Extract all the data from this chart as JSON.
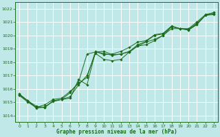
{
  "title": "Graphe pression niveau de la mer (hPa)",
  "bg_color": "#c0e8e8",
  "plot_bg_color": "#c0e8e8",
  "grid_color": "#ffffff",
  "line_color": "#1a6b1a",
  "marker_color": "#1a6b1a",
  "xlim": [
    -0.5,
    23.5
  ],
  "ylim": [
    1013.5,
    1022.5
  ],
  "xticks": [
    0,
    1,
    2,
    3,
    4,
    5,
    6,
    7,
    8,
    9,
    10,
    11,
    12,
    13,
    14,
    15,
    16,
    17,
    18,
    19,
    20,
    21,
    22,
    23
  ],
  "yticks": [
    1014,
    1015,
    1016,
    1017,
    1018,
    1019,
    1020,
    1021,
    1022
  ],
  "series": [
    [
      1015.5,
      1015.1,
      1014.7,
      1014.6,
      1015.1,
      1015.2,
      1015.3,
      1016.7,
      1016.3,
      1018.75,
      1018.8,
      1018.55,
      1018.6,
      1018.75,
      1019.2,
      1019.5,
      1019.7,
      1020.0,
      1020.65,
      1020.5,
      1020.4,
      1020.8,
      1021.5,
      1021.7
    ],
    [
      1015.5,
      1015.0,
      1014.6,
      1014.6,
      1015.1,
      1015.2,
      1015.4,
      1016.3,
      1017.0,
      1018.65,
      1018.2,
      1018.1,
      1018.2,
      1018.75,
      1019.2,
      1019.3,
      1019.6,
      1020.0,
      1020.5,
      1020.5,
      1020.4,
      1020.85,
      1021.5,
      1021.55
    ],
    [
      1015.6,
      1015.1,
      1014.6,
      1014.8,
      1015.2,
      1015.3,
      1015.8,
      1016.4,
      1016.85,
      1018.8,
      1018.55,
      1018.6,
      1018.8,
      1019.1,
      1019.5,
      1019.6,
      1020.05,
      1020.15,
      1020.7,
      1020.5,
      1020.5,
      1021.0,
      1021.55,
      1021.7
    ],
    [
      1015.6,
      1015.1,
      1014.55,
      1014.65,
      1015.05,
      1015.2,
      1015.7,
      1016.5,
      1018.6,
      1018.75,
      1018.65,
      1018.5,
      1018.6,
      1018.8,
      1019.3,
      1019.55,
      1020.0,
      1020.1,
      1020.65,
      1020.5,
      1020.45,
      1020.9,
      1021.5,
      1021.6
    ]
  ]
}
